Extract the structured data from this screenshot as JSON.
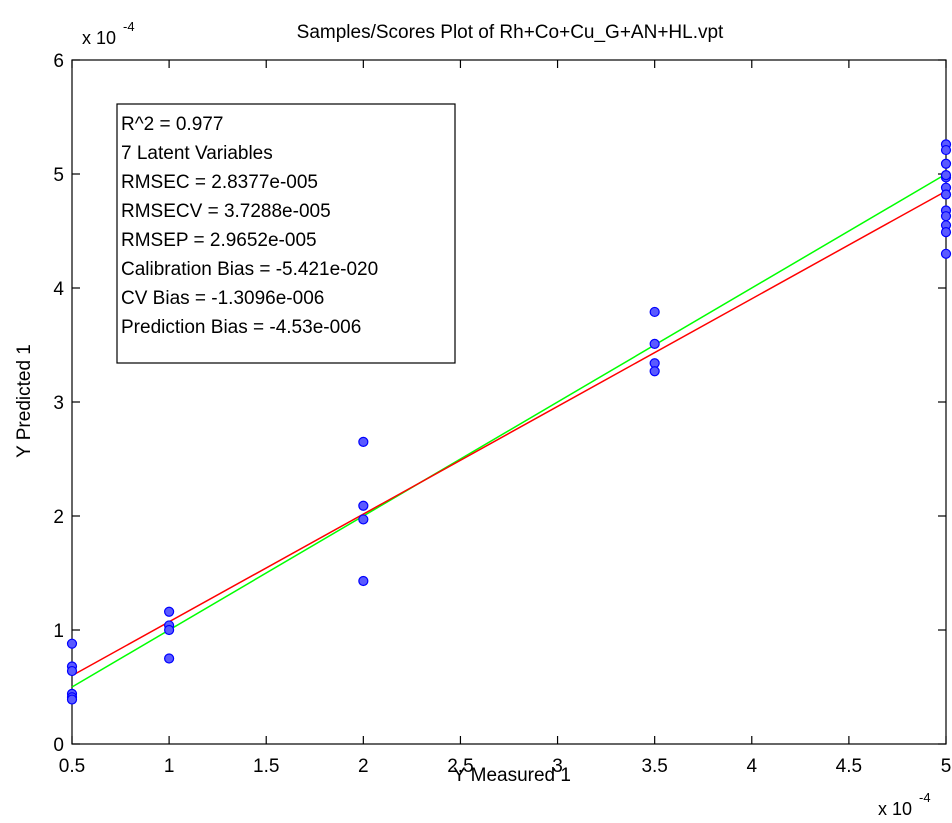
{
  "chart_data": {
    "type": "scatter",
    "title": "Samples/Scores Plot of Rh+Co+Cu_G+AN+HL.vpt",
    "xlabel": "Y Measured 1",
    "ylabel": "Y Predicted 1",
    "x_exponent_label": "x 10",
    "x_exponent": "-4",
    "y_exponent_label": "x 10",
    "y_exponent": "-4",
    "xlim": [
      0.5,
      5
    ],
    "ylim": [
      0,
      6
    ],
    "xticks": [
      "0.5",
      "1",
      "1.5",
      "2",
      "2.5",
      "3",
      "3.5",
      "4",
      "4.5",
      "5"
    ],
    "yticks": [
      "0",
      "1",
      "2",
      "3",
      "4",
      "5",
      "6"
    ],
    "grid": false,
    "series": [
      {
        "color": "#0000ff",
        "marker": "circle",
        "x": [
          0.5,
          0.5,
          0.5,
          0.5,
          0.5,
          0.5,
          1,
          1,
          1,
          1,
          2,
          2,
          2,
          2,
          3.5,
          3.5,
          3.5,
          3.5,
          5,
          5,
          5,
          5,
          5,
          5,
          5,
          5,
          5,
          5,
          5,
          5
        ],
        "y": [
          0.88,
          0.68,
          0.64,
          0.44,
          0.41,
          0.39,
          1.16,
          1.04,
          1.0,
          0.75,
          2.65,
          2.09,
          1.97,
          1.43,
          3.79,
          3.51,
          3.34,
          3.27,
          5.26,
          5.21,
          5.09,
          4.88,
          4.82,
          4.68,
          4.63,
          4.55,
          4.49,
          4.3,
          4.97,
          4.99
        ]
      }
    ],
    "lines": [
      {
        "color": "#00ff00",
        "x": [
          0.5,
          5
        ],
        "y": [
          0.5,
          5.0
        ]
      },
      {
        "color": "#ff0000",
        "x": [
          0.5,
          5
        ],
        "y": [
          0.6,
          4.85
        ]
      }
    ],
    "annotation": [
      "R^2 = 0.977",
      "7 Latent Variables",
      "RMSEC = 2.8377e-005",
      "RMSECV = 3.7288e-005",
      "RMSEP = 2.9652e-005",
      "Calibration Bias = -5.421e-020",
      "CV Bias = -1.3096e-006",
      "Prediction Bias = -4.53e-006"
    ]
  }
}
